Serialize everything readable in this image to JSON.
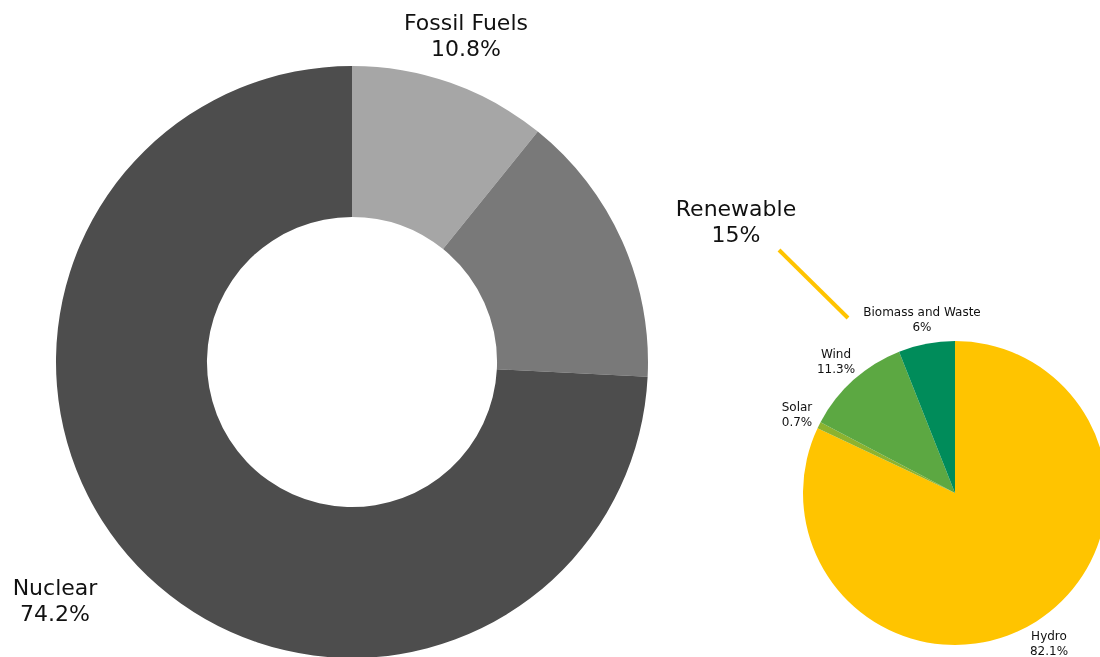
{
  "chart_data": [
    {
      "type": "donut",
      "categories": [
        "Fossil Fuels",
        "Renewable",
        "Nuclear"
      ],
      "values": [
        10.8,
        15,
        74.2
      ],
      "value_labels": [
        "10.8%",
        "15%",
        "74.2%"
      ],
      "colors": [
        "#a6a6a6",
        "#797979",
        "#4d4d4d"
      ]
    },
    {
      "type": "pie",
      "categories": [
        "Hydro",
        "Solar",
        "Wind",
        "Biomass and Waste"
      ],
      "values": [
        82.1,
        0.7,
        11.3,
        6
      ],
      "value_labels": [
        "82.1%",
        "0.7%",
        "11.3%",
        "6%"
      ],
      "colors": [
        "#ffc400",
        "#8db32f",
        "#5ca842",
        "#008c5a"
      ]
    }
  ]
}
